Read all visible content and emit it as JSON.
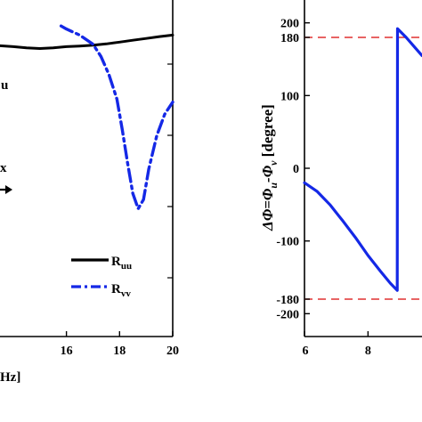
{
  "chart_data": [
    {
      "type": "line",
      "title": "",
      "xlabel_fragment": "Hz]",
      "ylabel_fragment": "u",
      "arrow_text": "x",
      "xticks": [
        16,
        18,
        20
      ],
      "xlim": [
        13.5,
        20
      ],
      "ylim": [
        0,
        1
      ],
      "legend_position": "bottom-right",
      "series": [
        {
          "name": "Ruu",
          "name_main": "R",
          "name_sub": "uu",
          "color": "#000000",
          "style": "solid",
          "x": [
            13.5,
            14,
            14.5,
            15,
            15.5,
            16,
            16.5,
            17,
            17.5,
            18,
            18.5,
            19,
            19.5,
            20
          ],
          "y": [
            0.955,
            0.952,
            0.948,
            0.946,
            0.948,
            0.952,
            0.954,
            0.957,
            0.961,
            0.967,
            0.973,
            0.979,
            0.985,
            0.99
          ]
        },
        {
          "name": "Rvv",
          "name_main": "R",
          "name_sub": "vv",
          "color": "#1428e6",
          "style": "dash-dot",
          "x": [
            15.8,
            16,
            16.5,
            17,
            17.3,
            17.6,
            17.9,
            18.1,
            18.3,
            18.5,
            18.7,
            18.9,
            19.1,
            19.4,
            19.7,
            20
          ],
          "y": [
            1.02,
            1.01,
            0.99,
            0.96,
            0.92,
            0.86,
            0.78,
            0.68,
            0.57,
            0.47,
            0.42,
            0.45,
            0.55,
            0.66,
            0.73,
            0.77
          ]
        }
      ]
    },
    {
      "type": "line",
      "title": "",
      "ylabel": "ΔΦ=Φu-Φv [degree]",
      "ylabel_parts": [
        "ΔΦ=Φ",
        "u",
        "-Φ",
        "v",
        " [degree]"
      ],
      "xticks": [
        6,
        8
      ],
      "yticks": [
        200,
        180,
        100,
        0,
        -100,
        -180,
        -200
      ],
      "xlim": [
        6,
        9.7
      ],
      "ylim": [
        -215,
        215
      ],
      "reference_lines": [
        180,
        -180
      ],
      "reference_color": "#e03030",
      "series": [
        {
          "name": "",
          "color": "#1428e6",
          "x": [
            6,
            6.4,
            6.8,
            7.2,
            7.6,
            8.0,
            8.4,
            8.7,
            8.92,
            8.93,
            9.2,
            9.5,
            9.7
          ],
          "y": [
            -20,
            -32,
            -50,
            -72,
            -95,
            -120,
            -142,
            -158,
            -168,
            192,
            180,
            165,
            155
          ]
        }
      ]
    }
  ]
}
